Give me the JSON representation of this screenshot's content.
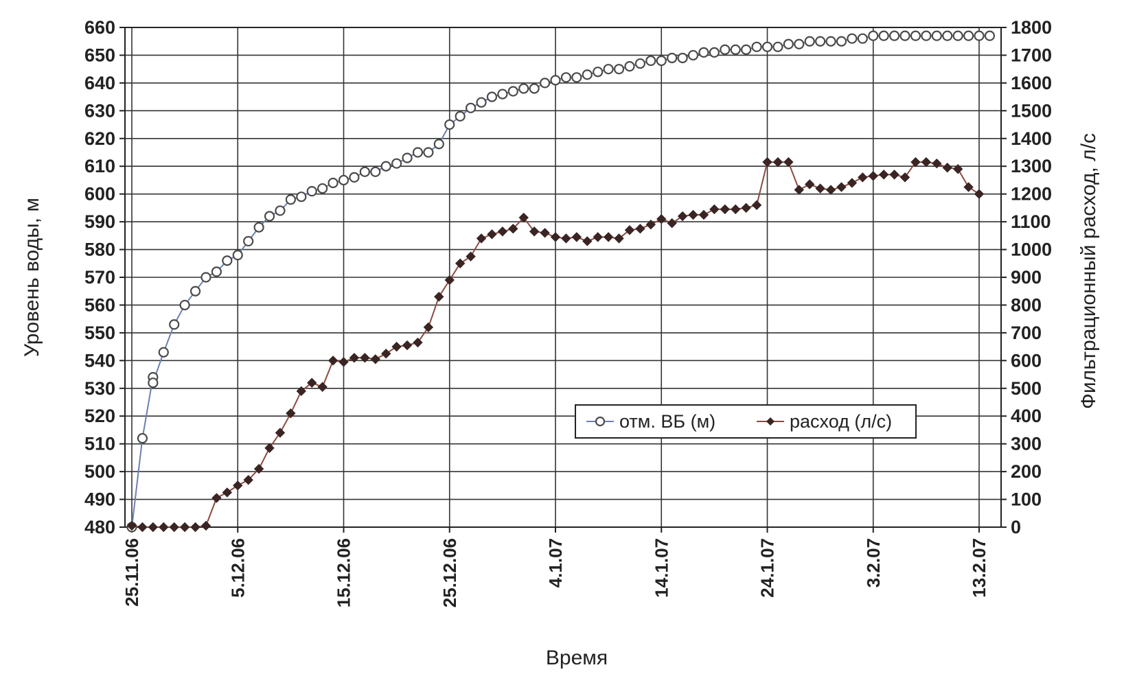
{
  "chart_data": {
    "type": "line",
    "title": "",
    "xlabel": "Время",
    "ylabel_left": "Уровень воды, м",
    "ylabel_right": "Фильтрационный расход, л/с",
    "x_tick_labels": [
      "25.11.06",
      "5.12.06",
      "15.12.06",
      "25.12.06",
      "4.1.07",
      "14.1.07",
      "24.1.07",
      "3.2.07",
      "13.2.07"
    ],
    "x_range_days": [
      0,
      80
    ],
    "ylim_left": [
      480,
      660
    ],
    "ylim_right": [
      0,
      1800
    ],
    "yticks_left": [
      "480",
      "490",
      "500",
      "510",
      "520",
      "530",
      "540",
      "550",
      "560",
      "570",
      "580",
      "590",
      "600",
      "610",
      "620",
      "630",
      "640",
      "650",
      "660"
    ],
    "yticks_right": [
      "0",
      "100",
      "200",
      "300",
      "400",
      "500",
      "600",
      "700",
      "800",
      "900",
      "1000",
      "1100",
      "1200",
      "1300",
      "1400",
      "1500",
      "1600",
      "1700",
      "1800"
    ],
    "grid": true,
    "legend": {
      "position": "center-right",
      "entries": [
        "отм. ВБ (м)",
        "расход (л/с)"
      ]
    },
    "series": [
      {
        "name": "отм. ВБ (м)",
        "axis": "left",
        "color": "#6a7fb0",
        "marker": "open-circle",
        "points": [
          [
            0.0,
            480
          ],
          [
            1.0,
            512
          ],
          [
            2.0,
            534
          ],
          [
            2.0,
            532
          ],
          [
            3.0,
            543
          ],
          [
            4.0,
            553
          ],
          [
            5.0,
            560
          ],
          [
            6.0,
            565
          ],
          [
            7.0,
            570
          ],
          [
            8.0,
            572
          ],
          [
            9.0,
            576
          ],
          [
            10.0,
            578
          ],
          [
            11.0,
            583
          ],
          [
            12.0,
            588
          ],
          [
            13.0,
            592
          ],
          [
            14.0,
            594
          ],
          [
            15.0,
            598
          ],
          [
            16.0,
            599
          ],
          [
            17.0,
            601
          ],
          [
            18.0,
            602
          ],
          [
            19.0,
            604
          ],
          [
            20.0,
            605
          ],
          [
            21.0,
            606
          ],
          [
            22.0,
            608
          ],
          [
            23.0,
            608
          ],
          [
            24.0,
            610
          ],
          [
            25.0,
            611
          ],
          [
            26.0,
            613
          ],
          [
            27.0,
            615
          ],
          [
            28.0,
            615
          ],
          [
            29.0,
            618
          ],
          [
            30.0,
            625
          ],
          [
            31.0,
            628
          ],
          [
            32.0,
            631
          ],
          [
            33.0,
            633
          ],
          [
            34.0,
            635
          ],
          [
            35.0,
            636
          ],
          [
            36.0,
            637
          ],
          [
            37.0,
            638
          ],
          [
            38.0,
            638
          ],
          [
            39.0,
            640
          ],
          [
            40.0,
            641
          ],
          [
            41.0,
            642
          ],
          [
            42.0,
            642
          ],
          [
            43.0,
            643
          ],
          [
            44.0,
            644
          ],
          [
            45.0,
            645
          ],
          [
            46.0,
            645
          ],
          [
            47.0,
            646
          ],
          [
            48.0,
            647
          ],
          [
            49.0,
            648
          ],
          [
            50.0,
            648
          ],
          [
            51.0,
            649
          ],
          [
            52.0,
            649
          ],
          [
            53.0,
            650
          ],
          [
            54.0,
            651
          ],
          [
            55.0,
            651
          ],
          [
            56.0,
            652
          ],
          [
            57.0,
            652
          ],
          [
            58.0,
            652
          ],
          [
            59.0,
            653
          ],
          [
            60.0,
            653
          ],
          [
            61.0,
            653
          ],
          [
            62.0,
            654
          ],
          [
            63.0,
            654
          ],
          [
            64.0,
            655
          ],
          [
            65.0,
            655
          ],
          [
            66.0,
            655
          ],
          [
            67.0,
            655
          ],
          [
            68.0,
            656
          ],
          [
            69.0,
            656
          ],
          [
            70.0,
            657
          ],
          [
            71.0,
            657
          ],
          [
            72.0,
            657
          ],
          [
            73.0,
            657
          ],
          [
            74.0,
            657
          ],
          [
            75.0,
            657
          ],
          [
            76.0,
            657
          ],
          [
            77.0,
            657
          ],
          [
            78.0,
            657
          ],
          [
            79.0,
            657
          ],
          [
            80.0,
            657
          ],
          [
            81.0,
            657
          ]
        ]
      },
      {
        "name": "расход (л/с)",
        "axis": "right",
        "color": "#8b4a3e",
        "marker": "filled-diamond",
        "points": [
          [
            0.0,
            5
          ],
          [
            1.0,
            0
          ],
          [
            2.0,
            0
          ],
          [
            3.0,
            0
          ],
          [
            4.0,
            0
          ],
          [
            5.0,
            0
          ],
          [
            6.0,
            0
          ],
          [
            7.0,
            5
          ],
          [
            8.0,
            105
          ],
          [
            9.0,
            125
          ],
          [
            10.0,
            150
          ],
          [
            11.0,
            170
          ],
          [
            12.0,
            210
          ],
          [
            13.0,
            285
          ],
          [
            14.0,
            340
          ],
          [
            15.0,
            410
          ],
          [
            16.0,
            490
          ],
          [
            17.0,
            520
          ],
          [
            18.0,
            505
          ],
          [
            19.0,
            600
          ],
          [
            20.0,
            595
          ],
          [
            21.0,
            610
          ],
          [
            22.0,
            610
          ],
          [
            23.0,
            605
          ],
          [
            24.0,
            625
          ],
          [
            25.0,
            650
          ],
          [
            26.0,
            655
          ],
          [
            27.0,
            665
          ],
          [
            28.0,
            720
          ],
          [
            29.0,
            830
          ],
          [
            30.0,
            890
          ],
          [
            31.0,
            950
          ],
          [
            32.0,
            975
          ],
          [
            33.0,
            1040
          ],
          [
            34.0,
            1055
          ],
          [
            35.0,
            1065
          ],
          [
            36.0,
            1075
          ],
          [
            37.0,
            1115
          ],
          [
            38.0,
            1065
          ],
          [
            39.0,
            1060
          ],
          [
            40.0,
            1045
          ],
          [
            41.0,
            1040
          ],
          [
            42.0,
            1045
          ],
          [
            43.0,
            1030
          ],
          [
            44.0,
            1045
          ],
          [
            45.0,
            1045
          ],
          [
            46.0,
            1040
          ],
          [
            47.0,
            1070
          ],
          [
            48.0,
            1075
          ],
          [
            49.0,
            1090
          ],
          [
            50.0,
            1110
          ],
          [
            51.0,
            1095
          ],
          [
            52.0,
            1120
          ],
          [
            53.0,
            1125
          ],
          [
            54.0,
            1125
          ],
          [
            55.0,
            1145
          ],
          [
            56.0,
            1145
          ],
          [
            57.0,
            1145
          ],
          [
            58.0,
            1150
          ],
          [
            59.0,
            1160
          ],
          [
            60.0,
            1315
          ],
          [
            61.0,
            1315
          ],
          [
            62.0,
            1315
          ],
          [
            63.0,
            1215
          ],
          [
            64.0,
            1235
          ],
          [
            65.0,
            1220
          ],
          [
            66.0,
            1215
          ],
          [
            67.0,
            1225
          ],
          [
            68.0,
            1240
          ],
          [
            69.0,
            1260
          ],
          [
            70.0,
            1265
          ],
          [
            71.0,
            1270
          ],
          [
            72.0,
            1270
          ],
          [
            73.0,
            1260
          ],
          [
            74.0,
            1315
          ],
          [
            75.0,
            1315
          ],
          [
            76.0,
            1310
          ],
          [
            77.0,
            1295
          ],
          [
            78.0,
            1290
          ],
          [
            79.0,
            1225
          ],
          [
            80.0,
            1200
          ]
        ]
      }
    ]
  }
}
